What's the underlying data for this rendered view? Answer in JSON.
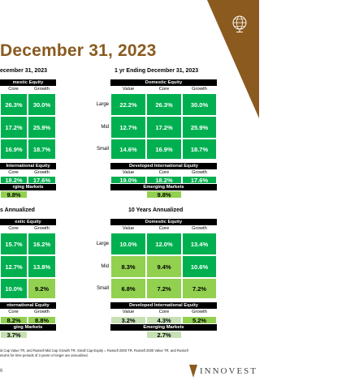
{
  "page": {
    "title": "December 31, 2023",
    "page_number": "6",
    "footnote_line1": "id Cap Value TR, and Russell Mid Cap Growth TR. Small Cap Equity = Russell 2000 TR, Russell 2000 Value TR, and Russell",
    "footnote_line2": "eturns for time periods of 3 years or longer are annualized.",
    "logo_text": "INNOVEST"
  },
  "colors": {
    "green_dark": "#00b050",
    "green_light": "#92d050",
    "green_pale": "#c6e0b4",
    "bronze": "#8a5a1f"
  },
  "left_top": {
    "subtitle": "ecember 31, 2023",
    "header": "mestic Equity",
    "cols": [
      "Core",
      "Growth"
    ],
    "rows": [
      [
        "26.3%",
        "30.0%"
      ],
      [
        "17.2%",
        "25.9%"
      ],
      [
        "16.9%",
        "18.7%"
      ]
    ],
    "intl_header": "International Equity",
    "intl_cols": [
      "Core",
      "Growth"
    ],
    "intl_values": [
      "18.2%",
      "17.6%"
    ],
    "em_header": "rging Markets",
    "em_value": "9.8%"
  },
  "right_top": {
    "subtitle": "1 yr Ending December 31, 2023",
    "header": "Domestic Equity",
    "cols": [
      "Value",
      "Core",
      "Growth"
    ],
    "row_labels": [
      "Large",
      "Mid",
      "Small"
    ],
    "rows": [
      [
        "22.2%",
        "26.3%",
        "30.0%"
      ],
      [
        "12.7%",
        "17.2%",
        "25.9%"
      ],
      [
        "14.6%",
        "16.9%",
        "18.7%"
      ]
    ],
    "intl_header": "Developed International Equity",
    "intl_cols": [
      "Value",
      "Core",
      "Growth"
    ],
    "intl_values": [
      "19.0%",
      "18.2%",
      "17.6%"
    ],
    "em_header": "Emerging Markets",
    "em_value": "9.8%"
  },
  "left_bottom": {
    "subtitle": "s Annualized",
    "header": "estic Equity",
    "cols": [
      "Core",
      "Growth"
    ],
    "rows": [
      [
        "15.7%",
        "16.2%"
      ],
      [
        "12.7%",
        "13.8%"
      ],
      [
        "10.0%",
        "9.2%"
      ]
    ],
    "intl_header": "nternational Equity",
    "intl_cols": [
      "Core",
      "Growth"
    ],
    "intl_values": [
      "8.2%",
      "8.8%"
    ],
    "em_header": "ging Markets",
    "em_value": "3.7%"
  },
  "right_bottom": {
    "subtitle": "10 Years Annualized",
    "header": "Domestic Equity",
    "cols": [
      "Value",
      "Core",
      "Growth"
    ],
    "row_labels": [
      "Large",
      "Mid",
      "Small"
    ],
    "rows": [
      [
        "10.0%",
        "12.0%",
        "13.4%"
      ],
      [
        "8.3%",
        "9.4%",
        "10.6%"
      ],
      [
        "6.8%",
        "7.2%",
        "7.2%"
      ]
    ],
    "intl_header": "Developed International Equity",
    "intl_cols": [
      "Value",
      "Core",
      "Growth"
    ],
    "intl_values": [
      "3.2%",
      "4.3%",
      "5.2%"
    ],
    "em_header": "Emerging Markets",
    "em_value": "2.7%"
  }
}
